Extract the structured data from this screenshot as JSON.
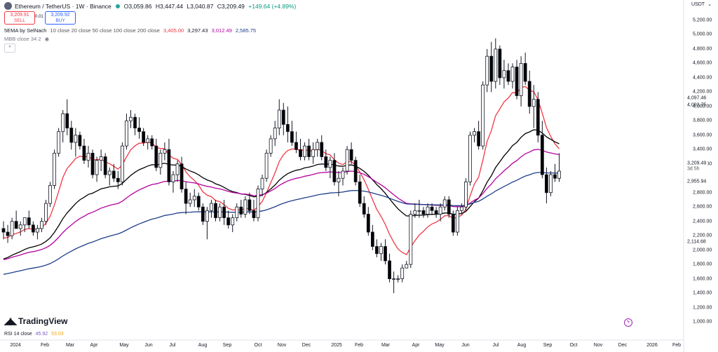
{
  "header": {
    "title": "Ethereum / TetherUS · 1W · Binance",
    "open": "O3,059.86",
    "high": "H3,447.44",
    "low": "L3,040.87",
    "close": "C3,209.49",
    "change": "+149.64 (+4.89%)"
  },
  "trade": {
    "sell_price": "3,209.91",
    "sell_label": "SELL",
    "spread": "0.01",
    "buy_price": "3,209.92",
    "buy_label": "BUY"
  },
  "indicators": {
    "ema_name": "5EMA by SelNach",
    "ema_params": "10 close 20 close 50 close 100 close 200 close",
    "ema_v1": "3,405.00",
    "ema_v2": "3,297.43",
    "ema_v3": "3,012.49",
    "ema_v4": "2,585.75",
    "mbb_name": "MBB close 34 2"
  },
  "rsi": {
    "name": "RSI 14 close",
    "v1": "45.92",
    "v2": "53.03"
  },
  "currency": "USDT",
  "brand": "TradingView",
  "colors": {
    "up": "#131722",
    "down": "#000000",
    "ema10": "#f23645",
    "ema20": "#000000",
    "ema50": "#b3009f",
    "ema100": "#1e3f8a"
  },
  "price_axis": [
    "5,200.00",
    "5,000.00",
    "4,800.00",
    "4,600.00",
    "4,400.00",
    "4,200.00",
    "4,000.00",
    "3,800.00",
    "3,600.00",
    "3,400.00",
    "3,200.00",
    "2,800.00",
    "2,600.00",
    "2,400.00",
    "2,200.00",
    "2,000.00",
    "1,800.00",
    "1,600.00",
    "1,400.00",
    "1,200.00",
    "1,000.00"
  ],
  "price_tags": {
    "t1": "4,097.46",
    "t2": "4,093.75",
    "t3": "2,955.94",
    "t4": "2,114.68",
    "last": "3,209.49",
    "countdown": "3d 5h"
  },
  "time_axis": [
    "2024",
    "Feb",
    "Mar",
    "Apr",
    "May",
    "Jun",
    "Jul",
    "Aug",
    "Sep",
    "Oct",
    "Nov",
    "Dec",
    "2025",
    "Feb",
    "Mar",
    "Apr",
    "May",
    "Jun",
    "Jul",
    "Aug",
    "Sep",
    "Oct",
    "Nov",
    "Dec",
    "2026",
    "Feb"
  ],
  "chart_data": {
    "type": "candlestick",
    "interval": "1W",
    "ylim": [
      1000,
      5200
    ],
    "candles": [
      [
        2300,
        2400,
        2150,
        2250
      ],
      [
        2250,
        2350,
        2100,
        2200
      ],
      [
        2200,
        2450,
        2150,
        2400
      ],
      [
        2400,
        2550,
        2300,
        2300
      ],
      [
        2300,
        2400,
        2200,
        2350
      ],
      [
        2350,
        2450,
        2250,
        2450
      ],
      [
        2450,
        2550,
        2300,
        2350
      ],
      [
        2350,
        2400,
        2200,
        2250
      ],
      [
        2250,
        2350,
        2150,
        2300
      ],
      [
        2300,
        2450,
        2250,
        2400
      ],
      [
        2400,
        2700,
        2350,
        2650
      ],
      [
        2650,
        2950,
        2600,
        2900
      ],
      [
        2900,
        3400,
        2850,
        3350
      ],
      [
        3350,
        3700,
        3300,
        3650
      ],
      [
        3650,
        3950,
        3500,
        3900
      ],
      [
        3900,
        4100,
        3600,
        3700
      ],
      [
        3700,
        3800,
        3400,
        3500
      ],
      [
        3500,
        3700,
        3300,
        3600
      ],
      [
        3600,
        3650,
        3400,
        3450
      ],
      [
        3450,
        3550,
        3200,
        3250
      ],
      [
        3250,
        3450,
        3150,
        3350
      ],
      [
        3350,
        3400,
        3000,
        3050
      ],
      [
        3050,
        3300,
        2950,
        3250
      ],
      [
        3250,
        3400,
        3100,
        3300
      ],
      [
        3300,
        3350,
        3000,
        3050
      ],
      [
        3050,
        3150,
        2900,
        3100
      ],
      [
        3100,
        3200,
        2950,
        3000
      ],
      [
        3000,
        3100,
        2850,
        2950
      ],
      [
        2950,
        3500,
        2900,
        3450
      ],
      [
        3450,
        3900,
        3400,
        3800
      ],
      [
        3800,
        3950,
        3700,
        3850
      ],
      [
        3850,
        3900,
        3600,
        3700
      ],
      [
        3700,
        3850,
        3550,
        3650
      ],
      [
        3650,
        3700,
        3450,
        3500
      ],
      [
        3500,
        3600,
        3400,
        3550
      ],
      [
        3550,
        3600,
        3400,
        3450
      ],
      [
        3450,
        3550,
        3100,
        3150
      ],
      [
        3150,
        3400,
        3050,
        3350
      ],
      [
        3350,
        3500,
        3250,
        3400
      ],
      [
        3400,
        3550,
        2900,
        2950
      ],
      [
        2950,
        3100,
        2800,
        3050
      ],
      [
        3050,
        3250,
        2950,
        3200
      ],
      [
        3200,
        3300,
        2800,
        2850
      ],
      [
        2850,
        2950,
        2500,
        2650
      ],
      [
        2650,
        2800,
        2600,
        2700
      ],
      [
        2700,
        2850,
        2600,
        2750
      ],
      [
        2750,
        2800,
        2550,
        2600
      ],
      [
        2600,
        2650,
        2350,
        2400
      ],
      [
        2400,
        2600,
        2150,
        2550
      ],
      [
        2550,
        2700,
        2450,
        2650
      ],
      [
        2650,
        2700,
        2400,
        2450
      ],
      [
        2450,
        2650,
        2400,
        2600
      ],
      [
        2600,
        2700,
        2350,
        2450
      ],
      [
        2450,
        2550,
        2300,
        2350
      ],
      [
        2350,
        2500,
        2250,
        2450
      ],
      [
        2450,
        2650,
        2400,
        2600
      ],
      [
        2600,
        2700,
        2450,
        2500
      ],
      [
        2500,
        2750,
        2450,
        2700
      ],
      [
        2700,
        2800,
        2500,
        2550
      ],
      [
        2550,
        2700,
        2400,
        2450
      ],
      [
        2450,
        2900,
        2400,
        2850
      ],
      [
        2850,
        3050,
        2750,
        3000
      ],
      [
        3000,
        3400,
        2950,
        3350
      ],
      [
        3350,
        3600,
        3300,
        3550
      ],
      [
        3550,
        3800,
        3450,
        3700
      ],
      [
        3700,
        4100,
        3600,
        3950
      ],
      [
        3950,
        4050,
        3600,
        3750
      ],
      [
        3750,
        4000,
        3500,
        3650
      ],
      [
        3650,
        3800,
        3450,
        3500
      ],
      [
        3500,
        3650,
        3350,
        3400
      ],
      [
        3400,
        3550,
        3250,
        3300
      ],
      [
        3300,
        3500,
        3250,
        3450
      ],
      [
        3450,
        3550,
        3250,
        3300
      ],
      [
        3300,
        3500,
        3200,
        3400
      ],
      [
        3400,
        3550,
        3300,
        3500
      ],
      [
        3500,
        3600,
        3250,
        3300
      ],
      [
        3300,
        3400,
        3100,
        3150
      ],
      [
        3150,
        3300,
        3000,
        3250
      ],
      [
        3250,
        3350,
        2900,
        2950
      ],
      [
        2950,
        3100,
        2750,
        3000
      ],
      [
        3000,
        3150,
        2900,
        3100
      ],
      [
        3100,
        3450,
        3050,
        3400
      ],
      [
        3400,
        3500,
        3200,
        3250
      ],
      [
        3250,
        3300,
        2900,
        2950
      ],
      [
        2950,
        3050,
        2600,
        2650
      ],
      [
        2650,
        2750,
        2450,
        2500
      ],
      [
        2500,
        2600,
        2200,
        2250
      ],
      [
        2250,
        2350,
        2000,
        2050
      ],
      [
        2050,
        2150,
        1900,
        1950
      ],
      [
        1950,
        2100,
        1850,
        2050
      ],
      [
        2050,
        2150,
        1800,
        1850
      ],
      [
        1850,
        1950,
        1550,
        1600
      ],
      [
        1600,
        1700,
        1400,
        1600
      ],
      [
        1600,
        1650,
        1550,
        1600
      ],
      [
        1600,
        1800,
        1550,
        1750
      ],
      [
        1750,
        1850,
        1750,
        1800
      ],
      [
        1800,
        2550,
        1750,
        2500
      ],
      [
        2500,
        2650,
        2450,
        2550
      ],
      [
        2550,
        2700,
        2450,
        2550
      ],
      [
        2550,
        2600,
        2450,
        2500
      ],
      [
        2500,
        2650,
        2450,
        2600
      ],
      [
        2600,
        2650,
        2500,
        2550
      ],
      [
        2550,
        2600,
        2450,
        2500
      ],
      [
        2500,
        2650,
        2400,
        2600
      ],
      [
        2600,
        2750,
        2550,
        2700
      ],
      [
        2700,
        2750,
        2450,
        2500
      ],
      [
        2500,
        2550,
        2200,
        2250
      ],
      [
        2250,
        2600,
        2200,
        2550
      ],
      [
        2550,
        2650,
        2500,
        2600
      ],
      [
        2600,
        3000,
        2550,
        2950
      ],
      [
        2950,
        3650,
        2900,
        3600
      ],
      [
        3600,
        3700,
        3500,
        3650
      ],
      [
        3650,
        3800,
        3400,
        3450
      ],
      [
        3450,
        4350,
        3400,
        4300
      ],
      [
        4300,
        4800,
        4200,
        4700
      ],
      [
        4700,
        4900,
        4200,
        4350
      ],
      [
        4350,
        4950,
        4250,
        4800
      ],
      [
        4800,
        4850,
        4300,
        4400
      ],
      [
        4400,
        4650,
        4250,
        4500
      ],
      [
        4500,
        4600,
        4300,
        4350
      ],
      [
        4350,
        4600,
        4250,
        4550
      ],
      [
        4550,
        4650,
        4100,
        4150
      ],
      [
        4150,
        4700,
        4000,
        4600
      ],
      [
        4600,
        4750,
        4300,
        4350
      ],
      [
        4350,
        4500,
        3900,
        4000
      ],
      [
        4000,
        4300,
        3700,
        4100
      ],
      [
        4100,
        4200,
        3500,
        3600
      ],
      [
        3600,
        3800,
        3000,
        3050
      ],
      [
        3050,
        3150,
        2650,
        2800
      ],
      [
        2800,
        3100,
        2750,
        3050
      ],
      [
        3050,
        3200,
        2950,
        3000
      ],
      [
        3000,
        3350,
        2950,
        3100
      ]
    ]
  }
}
